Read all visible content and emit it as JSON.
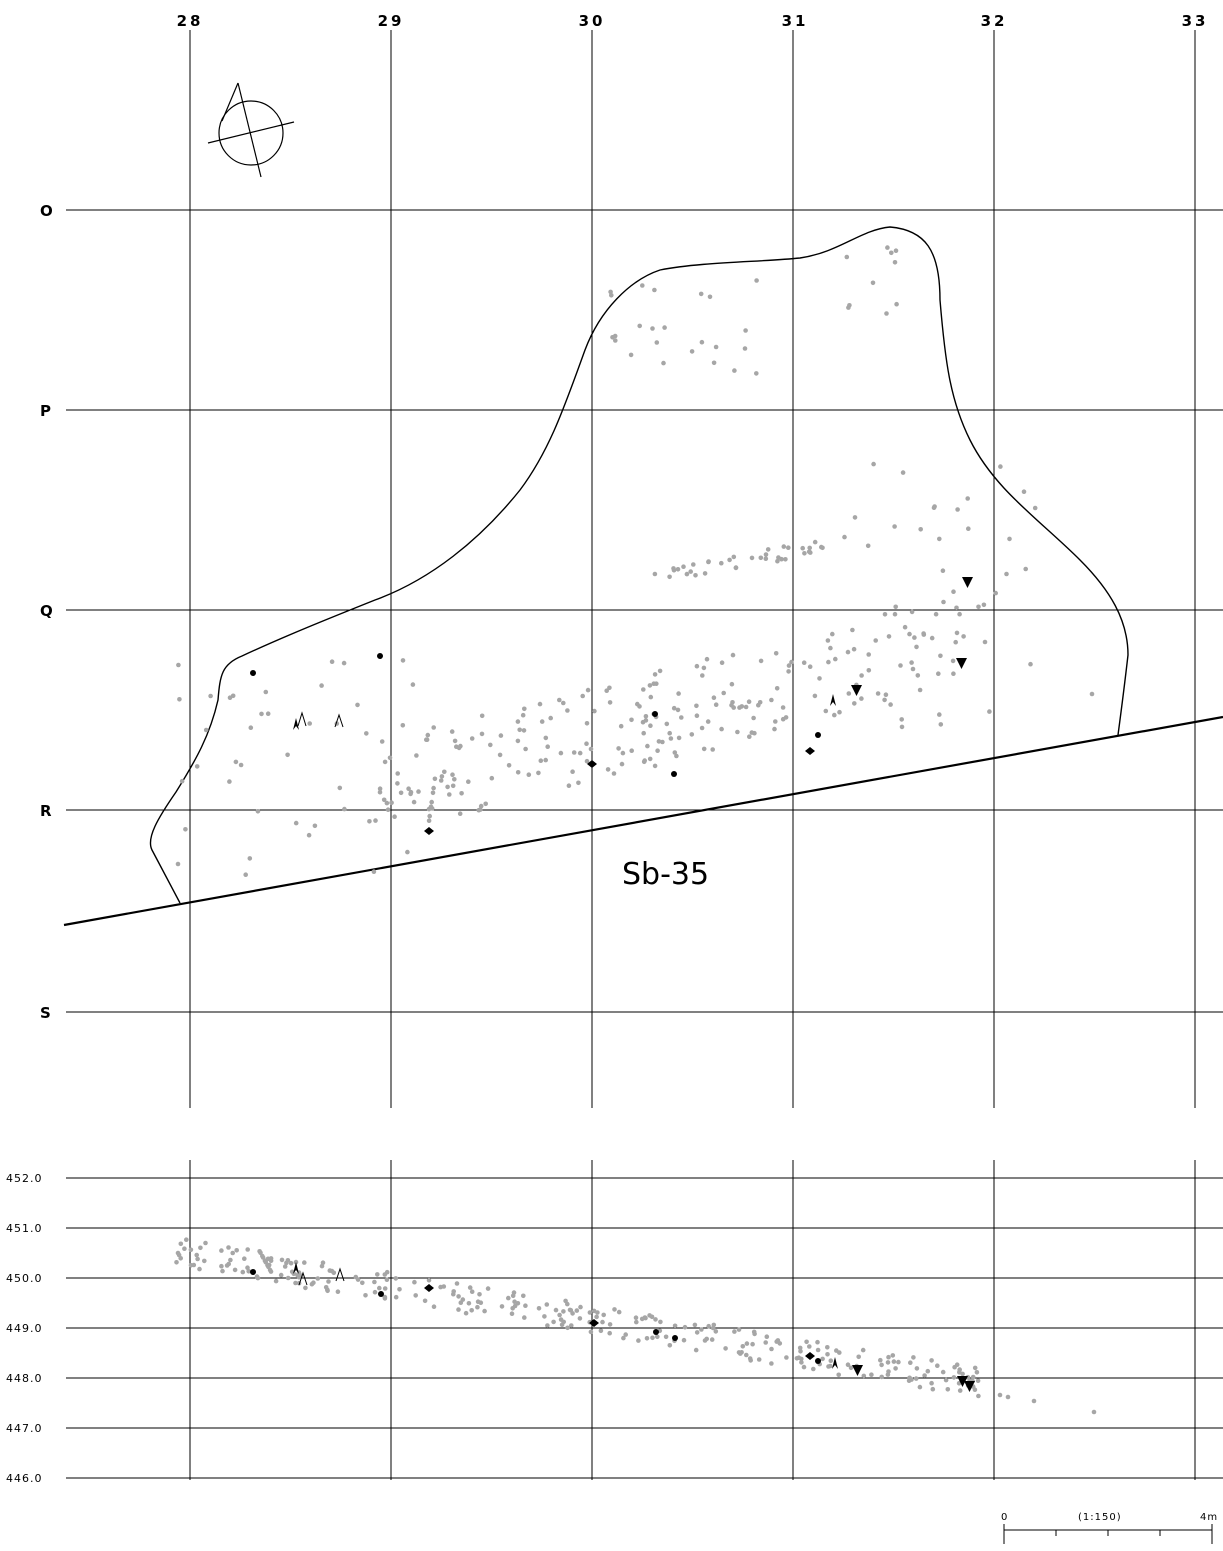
{
  "plan": {
    "columns": [
      "28",
      "29",
      "30",
      "31",
      "32",
      "33"
    ],
    "rows": [
      "O",
      "P",
      "Q",
      "R",
      "S"
    ],
    "feature_label": "Sb-35"
  },
  "section": {
    "elevations": [
      "452.0",
      "451.0",
      "450.0",
      "449.0",
      "448.0",
      "447.0",
      "446.0"
    ]
  },
  "scale_bar": {
    "start": "0",
    "ratio": "(1:150)",
    "end": "4m"
  },
  "north_icon": "north-arrow-icon"
}
